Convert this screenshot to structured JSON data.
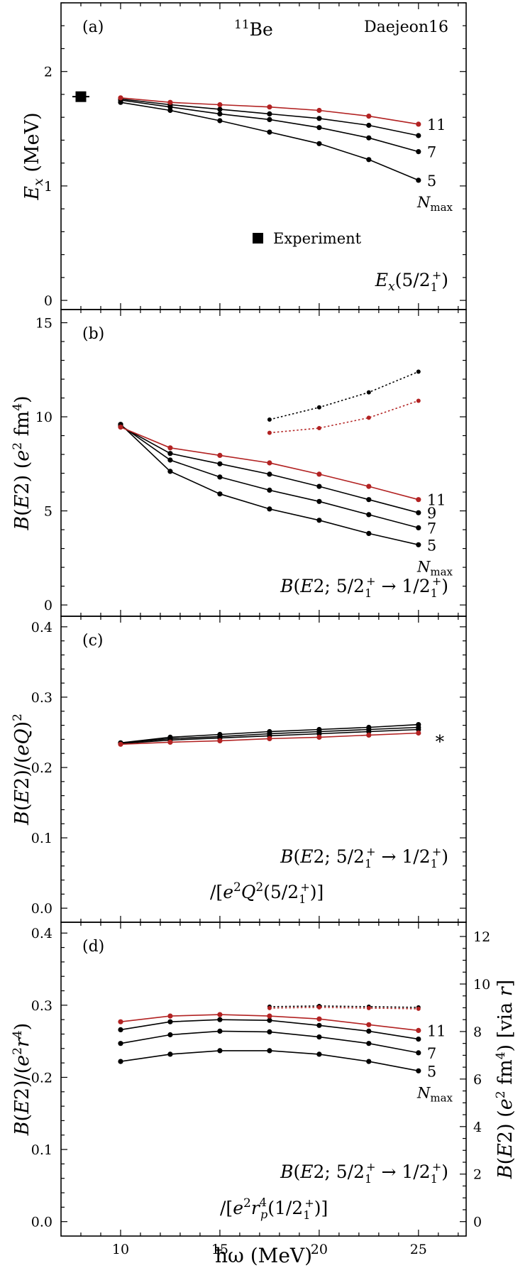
{
  "figure": {
    "xlabel": "ħω (MeV)",
    "xticks": [
      10,
      15,
      20,
      25
    ],
    "xlim": [
      7.0,
      27.4
    ]
  },
  "chart_data": [
    {
      "type": "line",
      "panel": "(a)",
      "nucleus": "11Be",
      "nucleus_mass": "11",
      "nucleus_symbol": "Be",
      "interaction": "Daejeon16",
      "ylabel": "E_x (MeV)",
      "ylim": [
        -0.08,
        2.6
      ],
      "yticks": [
        0,
        1,
        2
      ],
      "annotation": "E_x(5/2_1^+)",
      "legend": "Experiment",
      "experiment": {
        "x": 8.0,
        "y": 1.78,
        "err": 0.03
      },
      "x": [
        10,
        12.5,
        15,
        17.5,
        20,
        22.5,
        25
      ],
      "series": [
        {
          "name": "5",
          "color": "#000000",
          "style": "solid",
          "values": [
            1.73,
            1.66,
            1.57,
            1.47,
            1.37,
            1.23,
            1.05
          ]
        },
        {
          "name": "7",
          "color": "#000000",
          "style": "solid",
          "values": [
            1.75,
            1.69,
            1.63,
            1.58,
            1.51,
            1.42,
            1.3
          ]
        },
        {
          "name": "9",
          "color": "#000000",
          "style": "solid",
          "values": [
            1.76,
            1.71,
            1.67,
            1.63,
            1.59,
            1.53,
            1.44
          ]
        },
        {
          "name": "11",
          "color": "#b22222",
          "style": "solid",
          "values": [
            1.77,
            1.73,
            1.71,
            1.69,
            1.66,
            1.61,
            1.54
          ]
        }
      ],
      "line_labels": [
        "11",
        "7",
        "5"
      ],
      "nmax_label": "N_max"
    },
    {
      "type": "line",
      "panel": "(b)",
      "ylabel": "B(E2) (e² fm⁴)",
      "ylim": [
        -0.6,
        15.7
      ],
      "yticks": [
        0,
        5,
        10,
        15
      ],
      "annotation": "B(E2; 5/2_1^+ → 1/2_1^+)",
      "x": [
        10,
        12.5,
        15,
        17.5,
        20,
        22.5,
        25
      ],
      "series": [
        {
          "name": "5",
          "color": "#000000",
          "style": "solid",
          "values": [
            9.6,
            7.1,
            5.9,
            5.1,
            4.5,
            3.8,
            3.2
          ]
        },
        {
          "name": "7",
          "color": "#000000",
          "style": "solid",
          "values": [
            9.55,
            7.7,
            6.8,
            6.1,
            5.5,
            4.8,
            4.1
          ]
        },
        {
          "name": "9",
          "color": "#000000",
          "style": "solid",
          "values": [
            9.5,
            8.05,
            7.5,
            6.95,
            6.3,
            5.6,
            4.9
          ]
        },
        {
          "name": "11",
          "color": "#b22222",
          "style": "solid",
          "values": [
            9.45,
            8.35,
            7.95,
            7.55,
            6.95,
            6.3,
            5.6
          ]
        }
      ],
      "dotted_x": [
        17.5,
        20,
        22.5,
        25
      ],
      "dotted_series": [
        {
          "name": "black-dotted",
          "color": "#000000",
          "style": "dotted",
          "values": [
            9.85,
            10.5,
            11.3,
            12.4
          ]
        },
        {
          "name": "red-dotted",
          "color": "#b22222",
          "style": "dotted",
          "values": [
            9.15,
            9.4,
            9.95,
            10.85
          ]
        }
      ],
      "line_labels": [
        "11",
        "9",
        "7",
        "5"
      ],
      "nmax_label": "N_max"
    },
    {
      "type": "line",
      "panel": "(c)",
      "ylabel": "B(E2)/(eQ)²",
      "ylim": [
        -0.02,
        0.415
      ],
      "yticks": [
        0.0,
        0.1,
        0.2,
        0.3,
        0.4
      ],
      "annotation_line1": "B(E2; 5/2_1^+ → 1/2_1^+)",
      "annotation_line2": "/[e²Q²(5/2_1^+)]",
      "marker": "∗",
      "x": [
        10,
        12.5,
        15,
        17.5,
        20,
        22.5,
        25
      ],
      "series": [
        {
          "name": "5",
          "color": "#000000",
          "style": "solid",
          "values": [
            0.235,
            0.243,
            0.247,
            0.251,
            0.254,
            0.257,
            0.261
          ]
        },
        {
          "name": "7",
          "color": "#000000",
          "style": "solid",
          "values": [
            0.235,
            0.241,
            0.244,
            0.248,
            0.251,
            0.254,
            0.257
          ]
        },
        {
          "name": "9",
          "color": "#000000",
          "style": "solid",
          "values": [
            0.234,
            0.239,
            0.242,
            0.245,
            0.248,
            0.251,
            0.254
          ]
        },
        {
          "name": "11",
          "color": "#b22222",
          "style": "solid",
          "values": [
            0.233,
            0.236,
            0.238,
            0.241,
            0.243,
            0.246,
            0.249
          ]
        }
      ]
    },
    {
      "type": "line",
      "panel": "(d)",
      "ylabel": "B(E2)/(e²r⁴)",
      "ylabel_right": "B(E2) (e² fm⁴) [via r]",
      "ylim": [
        -0.02,
        0.415
      ],
      "yticks": [
        0.0,
        0.1,
        0.2,
        0.3,
        0.4
      ],
      "yticks_right": [
        0,
        2,
        4,
        6,
        8,
        10,
        12
      ],
      "right_scale": 30.36,
      "annotation_line1": "B(E2; 5/2_1^+ → 1/2_1^+)",
      "annotation_line2": "/[e²r_p⁴(1/2_1^+)]",
      "x": [
        10,
        12.5,
        15,
        17.5,
        20,
        22.5,
        25
      ],
      "series": [
        {
          "name": "5",
          "color": "#000000",
          "style": "solid",
          "values": [
            0.222,
            0.232,
            0.237,
            0.237,
            0.232,
            0.222,
            0.209
          ]
        },
        {
          "name": "7",
          "color": "#000000",
          "style": "solid",
          "values": [
            0.247,
            0.259,
            0.264,
            0.263,
            0.256,
            0.247,
            0.234
          ]
        },
        {
          "name": "9",
          "color": "#000000",
          "style": "solid",
          "values": [
            0.266,
            0.277,
            0.28,
            0.279,
            0.272,
            0.264,
            0.253
          ]
        },
        {
          "name": "11",
          "color": "#b22222",
          "style": "solid",
          "values": [
            0.277,
            0.285,
            0.287,
            0.285,
            0.281,
            0.273,
            0.265
          ]
        }
      ],
      "dotted_x": [
        17.5,
        20,
        22.5,
        25
      ],
      "dotted_series": [
        {
          "name": "black-dotted",
          "color": "#000000",
          "style": "dotted",
          "values": [
            0.298,
            0.299,
            0.298,
            0.297
          ]
        },
        {
          "name": "red-dotted",
          "color": "#b22222",
          "style": "dotted",
          "values": [
            0.296,
            0.297,
            0.296,
            0.295
          ]
        }
      ],
      "line_labels": [
        "11",
        "7",
        "5"
      ],
      "nmax_label": "N_max"
    }
  ]
}
